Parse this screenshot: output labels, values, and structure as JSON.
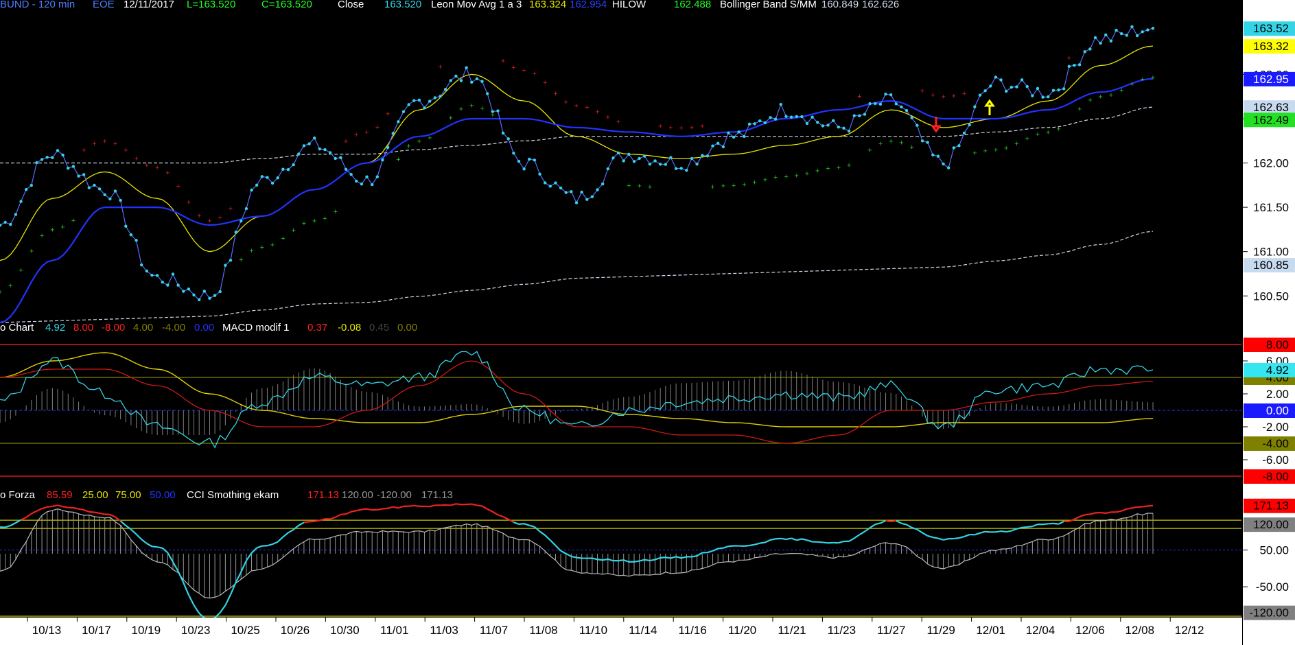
{
  "colors": {
    "background": "#000000",
    "axis_panel": "#ffffff",
    "price": "#33d4e6",
    "leon": "#e6e600",
    "hilow": "#2233ff",
    "bollinger": "#cfd8ec",
    "psar_up": "#22cc22",
    "psar_down": "#e02020",
    "macd": "#33d4e6",
    "macd_signal": "#d01818",
    "macd_yellow": "#e0d000",
    "cci_fast": "#33d4e6",
    "cci_hot": "#ee2222",
    "cci_slow": "#bbbbbb",
    "grey": "#808080",
    "dark_yellow": "#808000"
  },
  "header": {
    "symbol": "BUND - 120 min",
    "exchange": "EOE",
    "date": "12/11/2017",
    "last": "L=163.520",
    "close_c": "C=163.520",
    "close_label": "Close",
    "close_val": "163.520",
    "leon_label": "Leon Mov Avg 1 a 3",
    "leon_v1": "163.324",
    "leon_v2": "162.954",
    "hilow_label": "HILOW",
    "hilow_val": "162.488",
    "boll_label": "Bollinger Band S/MM",
    "boll_v1": "160.849",
    "boll_v2": "162.626"
  },
  "macd_header": {
    "name": "o Chart",
    "v1": "4.92",
    "v2": "8.00",
    "v3": "-8.00",
    "v4": "4.00",
    "v5": "-4.00",
    "v6": "0.00",
    "name2": "MACD modif 1",
    "w1": "0.37",
    "w2": "-0.08",
    "w3": "0.45",
    "w4": "0.00"
  },
  "cci_header": {
    "name": "o Forza",
    "v1": "85.59",
    "v2": "25.00",
    "v3": "75.00",
    "v4": "50.00",
    "name2": "CCI Smothing ekam",
    "w1": "171.13",
    "w2": "120.00",
    "w3": "-120.00",
    "w4": "171.13"
  },
  "price_axis": {
    "ticks": [
      "163.00",
      "162.50",
      "162.00",
      "161.50",
      "161.00",
      "160.50"
    ],
    "badges": [
      {
        "text": "163.52",
        "bg": "#33d4e6",
        "fg": "#000000"
      },
      {
        "text": "163.32",
        "bg": "#ffff00",
        "fg": "#000000"
      },
      {
        "text": "162.95",
        "bg": "#1a1aff",
        "fg": "#ffffff"
      },
      {
        "text": "162.63",
        "bg": "#c8daf0",
        "fg": "#000000"
      },
      {
        "text": "162.49",
        "bg": "#22e022",
        "fg": "#000000"
      },
      {
        "text": "160.85",
        "bg": "#c8daf0",
        "fg": "#000000"
      }
    ]
  },
  "macd_axis": {
    "ticks": [
      "6.00",
      "2.00",
      "-2.00",
      "-6.00"
    ],
    "badges": [
      {
        "text": "8.00",
        "bg": "#ff0000",
        "fg": "#000000"
      },
      {
        "text": "4.00",
        "bg": "#808000",
        "fg": "#000000"
      },
      {
        "text": "4.92",
        "bg": "#33e6f0",
        "fg": "#000000"
      },
      {
        "text": "0.00",
        "bg": "#1a1aff",
        "fg": "#ffffff"
      },
      {
        "text": "-4.00",
        "bg": "#808000",
        "fg": "#000000"
      },
      {
        "text": "-8.00",
        "bg": "#ff0000",
        "fg": "#000000"
      }
    ]
  },
  "cci_axis": {
    "ticks": [
      "50.00",
      "-50.00"
    ],
    "badges": [
      {
        "text": "171.13",
        "bg": "#ff0000",
        "fg": "#000000"
      },
      {
        "text": "120.00",
        "bg": "#808080",
        "fg": "#000000"
      },
      {
        "text": "-120.00",
        "bg": "#808080",
        "fg": "#000000"
      }
    ]
  },
  "x_axis": {
    "labels": [
      "10/13",
      "10/17",
      "10/19",
      "10/23",
      "10/25",
      "10/26",
      "10/30",
      "11/01",
      "11/03",
      "11/07",
      "11/08",
      "11/10",
      "11/14",
      "11/16",
      "11/20",
      "11/21",
      "11/23",
      "11/27",
      "11/29",
      "12/01",
      "12/04",
      "12/06",
      "12/08",
      "12/12"
    ]
  },
  "chart_data": {
    "type": "line",
    "title": "BUND - 120 min",
    "x": [
      "10/13",
      "10/17",
      "10/19",
      "10/23",
      "10/25",
      "10/26",
      "10/30",
      "11/01",
      "11/03",
      "11/07",
      "11/08",
      "11/10",
      "11/14",
      "11/16",
      "11/20",
      "11/21",
      "11/23",
      "11/27",
      "11/29",
      "12/01",
      "12/04",
      "12/06",
      "12/08"
    ],
    "ylim": [
      160.2,
      163.7
    ],
    "series": [
      {
        "name": "Close",
        "values": [
          161.3,
          162.1,
          161.7,
          160.7,
          160.5,
          161.8,
          162.2,
          161.8,
          162.7,
          163.0,
          162.0,
          161.6,
          162.1,
          162.0,
          162.3,
          162.6,
          162.4,
          162.7,
          162.0,
          162.9,
          162.8,
          163.4,
          163.52
        ]
      },
      {
        "name": "Leon Mov Avg 1 a 3",
        "values": [
          160.9,
          161.6,
          161.9,
          161.6,
          161.0,
          161.4,
          161.7,
          162.0,
          162.6,
          163.0,
          162.7,
          162.3,
          162.1,
          162.05,
          162.1,
          162.2,
          162.3,
          162.6,
          162.4,
          162.5,
          162.7,
          163.1,
          163.32
        ]
      },
      {
        "name": "HILOW",
        "values": [
          160.2,
          160.9,
          161.5,
          161.5,
          161.3,
          161.4,
          161.7,
          162.0,
          162.3,
          162.5,
          162.5,
          162.4,
          162.35,
          162.3,
          162.35,
          162.5,
          162.6,
          162.7,
          162.5,
          162.5,
          162.6,
          162.8,
          162.95
        ]
      },
      {
        "name": "Bollinger Band S/MM",
        "values": [
          162.0,
          162.0,
          162.0,
          162.0,
          162.0,
          162.05,
          162.1,
          162.1,
          162.15,
          162.2,
          162.25,
          162.3,
          162.3,
          162.3,
          162.3,
          162.3,
          162.3,
          162.3,
          162.3,
          162.35,
          162.4,
          162.5,
          162.63
        ]
      }
    ],
    "macd": {
      "ylim": [
        -9,
        9
      ],
      "cyan": [
        1.0,
        6.0,
        2.0,
        -2.0,
        -4.0,
        1.0,
        4.0,
        3.0,
        4.0,
        7.0,
        0.0,
        -2.0,
        0.0,
        1.0,
        1.5,
        2.0,
        1.5,
        3.0,
        -2.0,
        2.5,
        3.0,
        5.0,
        4.92
      ],
      "red": [
        4.0,
        5.0,
        5.0,
        3.0,
        0.0,
        -2.0,
        -2.0,
        0.0,
        3.0,
        6.0,
        2.0,
        -2.0,
        -2.0,
        -3.0,
        -3.0,
        -4.0,
        -3.0,
        0.0,
        0.0,
        1.0,
        2.0,
        3.0,
        3.5
      ],
      "yellow": [
        4.0,
        6.0,
        7.0,
        5.0,
        2.0,
        0.0,
        -1.0,
        -1.5,
        -1.5,
        -0.5,
        0.5,
        0.5,
        -0.5,
        -1.0,
        -1.5,
        -2.0,
        -2.0,
        -2.0,
        -1.5,
        -1.5,
        -1.5,
        -1.5,
        -1.0
      ],
      "levels": [
        8,
        4,
        0,
        -4,
        -8
      ]
    },
    "cci": {
      "ylim": [
        -130,
        180
      ],
      "fast": [
        110,
        170,
        150,
        60,
        -140,
        60,
        130,
        160,
        170,
        175,
        120,
        30,
        20,
        30,
        60,
        80,
        70,
        130,
        80,
        100,
        120,
        150,
        171.13
      ],
      "slow": [
        -10,
        160,
        140,
        20,
        -80,
        0,
        80,
        100,
        100,
        120,
        80,
        -10,
        -20,
        -10,
        20,
        40,
        30,
        70,
        0,
        50,
        80,
        130,
        150
      ],
      "levels": [
        120,
        50
      ]
    }
  }
}
